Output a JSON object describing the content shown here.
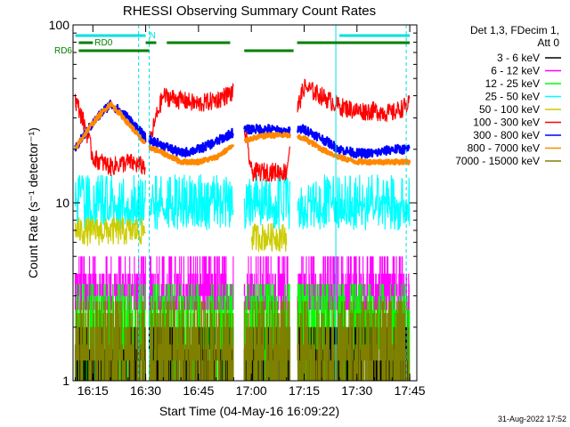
{
  "chart_data": {
    "type": "line",
    "title": "RHESSI Observing Summary Count Rates",
    "xlabel": "Start Time (04-May-16 16:09:22)",
    "ylabel": "Count Rate (s⁻¹ detector⁻¹)",
    "y_scale": "log",
    "ylim": [
      1,
      100
    ],
    "xlim": [
      "16:09:22",
      "17:47:00"
    ],
    "x_ticks": [
      "16:15",
      "16:30",
      "16:45",
      "17:00",
      "17:15",
      "17:30",
      "17:45"
    ],
    "y_ticks": [
      "1",
      "10",
      "100"
    ],
    "grid": false,
    "legend_position": "right",
    "legend_header": [
      "Det 1,3, FDecim 1,",
      "Att 0"
    ],
    "footer": "31-Aug-2022 17:52",
    "flags": [
      {
        "name": "N",
        "color": "#00e0e0",
        "segments": [
          [
            "16:10",
            "16:30"
          ],
          [
            "17:25",
            "17:45"
          ]
        ]
      },
      {
        "name": "RD0",
        "color": "#008000",
        "segments": [
          [
            "16:11",
            "16:15"
          ],
          [
            "16:30",
            "16:33"
          ],
          [
            "16:36",
            "16:54"
          ],
          [
            "17:13",
            "17:45"
          ]
        ]
      },
      {
        "name": "RD6",
        "color": "#008000",
        "segments": [
          [
            "16:11",
            "16:31"
          ],
          [
            "16:58",
            "17:12"
          ]
        ]
      }
    ],
    "vertical_lines": [
      {
        "color": "#00e0e0",
        "style": "dashed",
        "x": "16:28"
      },
      {
        "color": "#00e0e0",
        "style": "dashed",
        "x": "16:31"
      },
      {
        "color": "#00e0e0",
        "style": "solid",
        "x": "17:24"
      },
      {
        "color": "#00e0e0",
        "style": "dashed",
        "x": "17:44"
      }
    ],
    "gaps": [
      [
        "16:30",
        "16:31"
      ],
      [
        "16:55",
        "16:58"
      ],
      [
        "17:11",
        "17:13"
      ]
    ],
    "series": [
      {
        "name": "3 - 6 keV",
        "color": "#000000",
        "x": [
          "16:10",
          "16:15",
          "16:20",
          "16:25",
          "16:30",
          "16:35",
          "16:40",
          "16:45",
          "16:50",
          "16:55",
          "17:00",
          "17:05",
          "17:10",
          "17:15",
          "17:20",
          "17:25",
          "17:30",
          "17:35",
          "17:40",
          "17:45"
        ],
        "y": [
          1.5,
          1.5,
          1.4,
          1.5,
          1.5,
          1.5,
          1.5,
          1.5,
          1.5,
          1.5,
          1.5,
          1.5,
          1.5,
          1.5,
          1.5,
          1.5,
          1.5,
          1.5,
          1.5,
          1.5
        ]
      },
      {
        "name": "6 - 12 keV",
        "color": "#ff00ff",
        "x": [
          "16:10",
          "16:15",
          "16:20",
          "16:25",
          "16:30",
          "16:35",
          "16:40",
          "16:45",
          "16:50",
          "16:55",
          "17:00",
          "17:05",
          "17:10",
          "17:15",
          "17:20",
          "17:25",
          "17:30",
          "17:35",
          "17:40",
          "17:45"
        ],
        "y": [
          3.5,
          3.5,
          3.5,
          3.5,
          3.5,
          3.5,
          3.5,
          3.5,
          3.5,
          3.5,
          3.5,
          3.5,
          3.5,
          3.5,
          3.5,
          3.5,
          3.5,
          3.5,
          3.5,
          3.5
        ]
      },
      {
        "name": "12 - 25 keV",
        "color": "#00ff00",
        "x": [
          "16:10",
          "16:15",
          "16:20",
          "16:25",
          "16:30",
          "16:35",
          "16:40",
          "16:45",
          "16:50",
          "16:55",
          "17:00",
          "17:05",
          "17:10",
          "17:15",
          "17:20",
          "17:25",
          "17:30",
          "17:35",
          "17:40",
          "17:45"
        ],
        "y": [
          2.5,
          2.5,
          2.5,
          2.5,
          2.5,
          2.5,
          2.5,
          2.5,
          2.5,
          2.5,
          2.5,
          2.5,
          2.5,
          2.5,
          2.5,
          2.5,
          2.5,
          2.5,
          2.5,
          2.5
        ]
      },
      {
        "name": "25 - 50 keV",
        "color": "#00ffff",
        "x": [
          "16:10",
          "16:15",
          "16:20",
          "16:25",
          "16:30",
          "16:35",
          "16:40",
          "16:45",
          "16:50",
          "16:55",
          "17:00",
          "17:05",
          "17:10",
          "17:15",
          "17:20",
          "17:25",
          "17:30",
          "17:35",
          "17:40",
          "17:45"
        ],
        "y": [
          9,
          9,
          9,
          9,
          9,
          9,
          9,
          9,
          9,
          9,
          9,
          9,
          9,
          9,
          9,
          9,
          9,
          9,
          9,
          9
        ]
      },
      {
        "name": "50 - 100 keV",
        "color": "#cccc00",
        "x": [
          "16:10",
          "16:15",
          "16:20",
          "16:25",
          "16:30",
          "16:35",
          "16:40",
          "16:45",
          "16:50",
          "16:55",
          "17:00",
          "17:05",
          "17:10",
          "17:15",
          "17:20",
          "17:25",
          "17:30",
          "17:35",
          "17:40",
          "17:45"
        ],
        "y": [
          7,
          7,
          7,
          7,
          7,
          null,
          null,
          null,
          null,
          null,
          6.5,
          6.5,
          6.5,
          null,
          null,
          null,
          null,
          null,
          null,
          null
        ]
      },
      {
        "name": "100 - 300 keV",
        "color": "#ff0000",
        "x": [
          "16:10",
          "16:15",
          "16:20",
          "16:25",
          "16:30",
          "16:35",
          "16:40",
          "16:45",
          "16:50",
          "16:55",
          "17:00",
          "17:05",
          "17:10",
          "17:15",
          "17:20",
          "17:25",
          "17:30",
          "17:35",
          "17:40",
          "17:45"
        ],
        "y": [
          38,
          18,
          16,
          17,
          16,
          40,
          38,
          36,
          38,
          42,
          15,
          15,
          15,
          45,
          40,
          35,
          33,
          33,
          32,
          36
        ]
      },
      {
        "name": "300 - 800 keV",
        "color": "#0000ff",
        "x": [
          "16:10",
          "16:15",
          "16:20",
          "16:25",
          "16:30",
          "16:35",
          "16:40",
          "16:45",
          "16:50",
          "16:55",
          "17:00",
          "17:05",
          "17:10",
          "17:15",
          "17:20",
          "17:25",
          "17:30",
          "17:35",
          "17:40",
          "17:45"
        ],
        "y": [
          20,
          28,
          36,
          30,
          23,
          21,
          19,
          20,
          22,
          25,
          26,
          26,
          25,
          26,
          23,
          20,
          19,
          19,
          20,
          20
        ]
      },
      {
        "name": "800 - 7000 keV",
        "color": "#ff8800",
        "x": [
          "16:10",
          "16:15",
          "16:20",
          "16:25",
          "16:30",
          "16:35",
          "16:40",
          "16:45",
          "16:50",
          "16:55",
          "17:00",
          "17:05",
          "17:10",
          "17:15",
          "17:20",
          "17:25",
          "17:30",
          "17:35",
          "17:40",
          "17:45"
        ],
        "y": [
          20,
          28,
          36,
          28,
          21,
          19,
          17,
          17,
          18,
          21,
          23,
          24,
          24,
          23,
          20,
          18,
          17,
          17,
          17,
          17
        ]
      },
      {
        "name": "7000 - 15000 keV",
        "color": "#808000",
        "x": [
          "16:10",
          "16:15",
          "16:20",
          "16:25",
          "16:30",
          "16:35",
          "16:40",
          "16:45",
          "16:50",
          "16:55",
          "17:00",
          "17:05",
          "17:10",
          "17:15",
          "17:20",
          "17:25",
          "17:30",
          "17:35",
          "17:40",
          "17:45"
        ],
        "y": [
          1.8,
          1.8,
          1.8,
          1.8,
          1.8,
          1.8,
          1.8,
          1.8,
          1.8,
          1.8,
          1.8,
          1.8,
          1.8,
          1.8,
          1.8,
          1.8,
          1.8,
          1.8,
          1.8,
          1.8
        ]
      }
    ]
  }
}
